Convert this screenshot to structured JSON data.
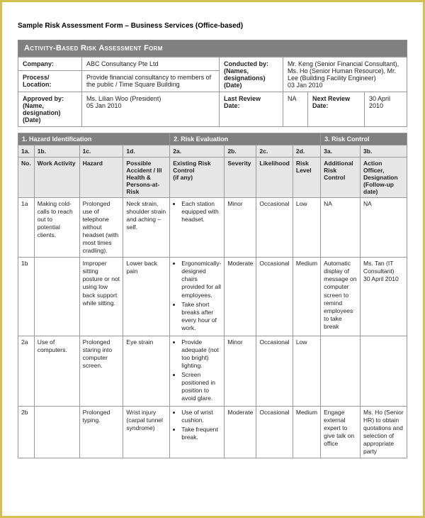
{
  "doc_title": "Sample Risk Assessment Form – Business Services (Office-based)",
  "form_header": "Activity-Based Risk Assessment Form",
  "colors": {
    "frame_border": "#d4c050",
    "section_bg": "#808080",
    "section_fg": "#ffffff",
    "colhead_bg": "#e6e6e6",
    "border": "#999999",
    "text": "#222222",
    "background": "#ffffff"
  },
  "meta": {
    "company_label": "Company:",
    "company_value": "ABC Consultancy Pte Ltd",
    "process_label": "Process/ Location:",
    "process_value": "Provide financial consultancy to members of the public / Time Square Building",
    "approved_label": "Approved by:\n(Name, designation)\n(Date)",
    "approved_value": "Ms. Lilian Woo (President)\n05 Jan 2010",
    "conducted_label": "Conducted by:\n(Names, designations)\n(Date)",
    "conducted_value": "Mr. Keng (Senior Financial Consultant), Ms. Ho (Senior Human Resource), Mr. Lee (Building Facility Engineer)\n03 Jan 2010",
    "last_review_label": "Last Review Date:",
    "last_review_value": "NA",
    "next_review_label": "Next Review Date:",
    "next_review_value": "30 April 2010"
  },
  "sections": {
    "s1": "1. Hazard Identification",
    "s2": "2. Risk Evaluation",
    "s3": "3. Risk Control"
  },
  "subcols": {
    "c1a": "1a.",
    "c1b": "1b.",
    "c1c": "1c.",
    "c1d": "1d.",
    "c2a": "2a.",
    "c2b": "2b.",
    "c2c": "2c.",
    "c2d": "2d.",
    "c3a": "3a.",
    "c3b": "3b."
  },
  "headers": {
    "no": "No.",
    "work_activity": "Work Activity",
    "hazard": "Hazard",
    "possible": "Possible Accident / Ill Health & Persons-at-Risk",
    "existing": "Existing Risk Control\n(if any)",
    "severity": "Severity",
    "likelihood": "Likelihood",
    "risk_level": "Risk Level",
    "addl_control": "Additional Risk Control",
    "action_officer": "Action Officer, Designation\n(Follow-up date)"
  },
  "rows": [
    {
      "no": "1a",
      "activity": "Making cold-calls to reach out to potential clients.",
      "hazard": "Prolonged use of telephone without headset (with most times cradling).",
      "possible": "Neck strain, shoulder strain and aching – self.",
      "existing": [
        "Each station equipped with headset."
      ],
      "severity": "Minor",
      "likelihood": "Occasional",
      "risk_level": "Low",
      "addl": "NA",
      "officer": "NA"
    },
    {
      "no": "1b",
      "activity": "",
      "hazard": "Improper sitting posture or not using low back support while sitting.",
      "possible": "Lower back pain",
      "existing": [
        "Ergonomically-designed chairs provided for all employees.",
        "Take short breaks after every hour of work."
      ],
      "severity": "Moderate",
      "likelihood": "Occasional",
      "risk_level": "Medium",
      "addl": "Automatic display of message on computer screen to remind employees to take break",
      "officer": "Ms. Tan (IT Consultant)\n30 April 2010"
    },
    {
      "no": "2a",
      "activity": "Use of computers.",
      "hazard": "Prolonged staring into computer screen.",
      "possible": "Eye strain",
      "existing": [
        "Provide adequate (not too bright) lighting.",
        "Screen positioned in position to avoid glare."
      ],
      "severity": "Minor",
      "likelihood": "Occasional",
      "risk_level": "Low",
      "addl": "",
      "officer": ""
    },
    {
      "no": "2b",
      "activity": "",
      "hazard": "Prolonged typing.",
      "possible": "Wrist injury (carpal tunnel syndrome)",
      "existing": [
        "Use of wrist cushion.",
        "Take frequent break."
      ],
      "severity": "Moderate",
      "likelihood": "Occasional",
      "risk_level": "Medium",
      "addl": "Engage external expert to give talk on office",
      "officer": "Ms. Ho (Senior HR) to obtain quotations and selection of appropriate party"
    }
  ]
}
